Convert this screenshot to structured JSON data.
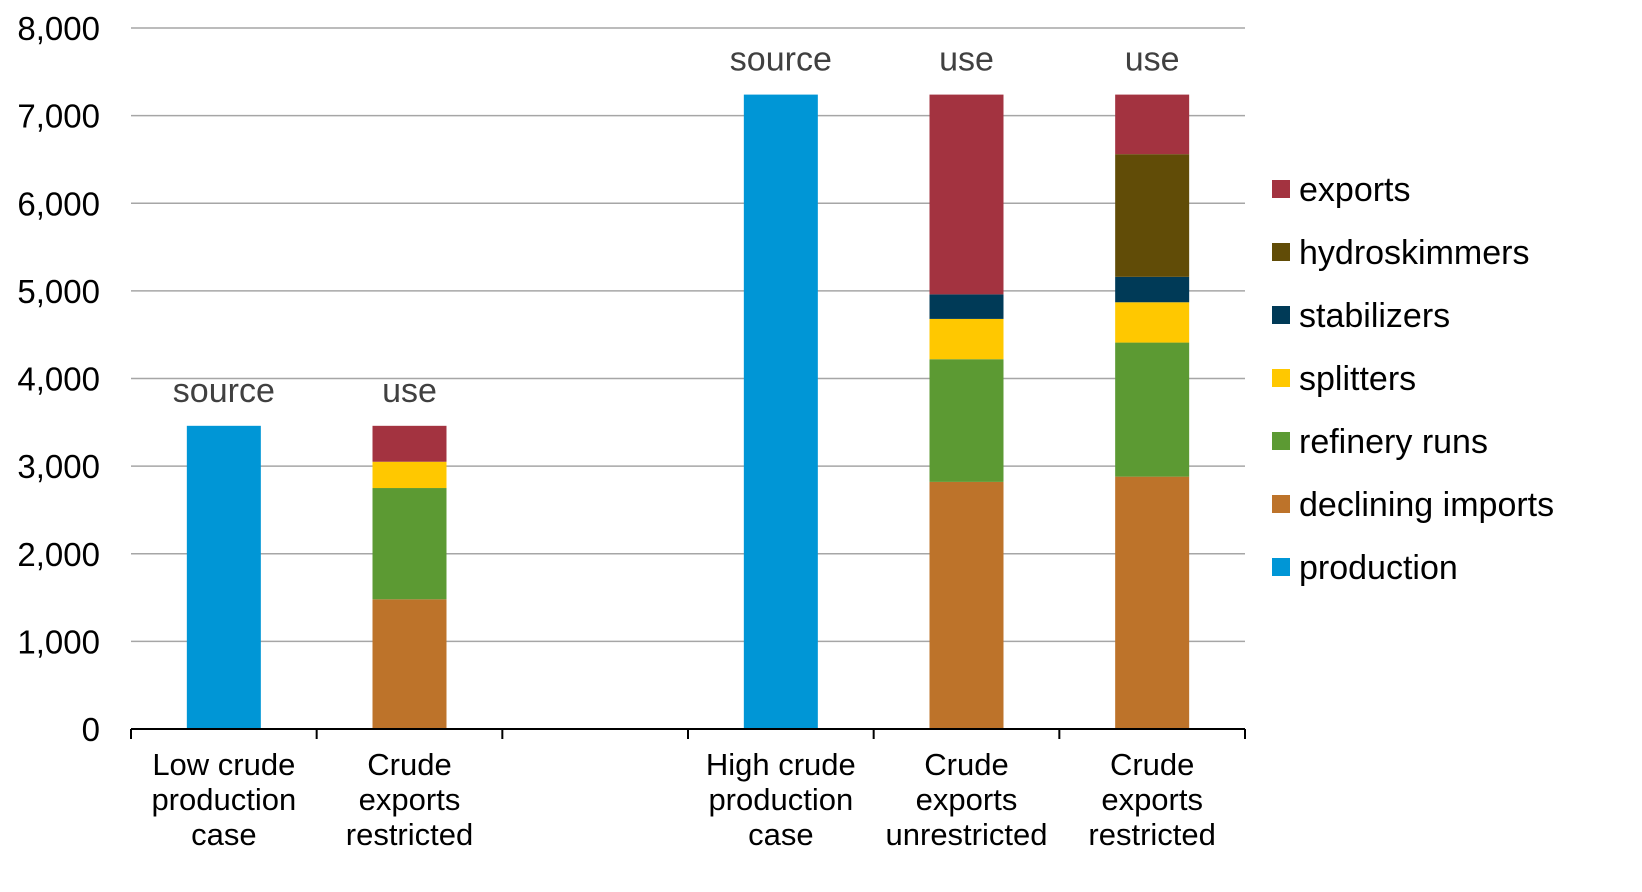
{
  "chart_data": {
    "type": "bar",
    "stacked": true,
    "title": "",
    "xlabel": "",
    "ylabel": "",
    "ylim": [
      0,
      8000
    ],
    "yticks": [
      0,
      1000,
      2000,
      3000,
      4000,
      5000,
      6000,
      7000,
      8000
    ],
    "ytick_labels": [
      "0",
      "1,000",
      "2,000",
      "3,000",
      "4,000",
      "5,000",
      "6,000",
      "7,000",
      "8,000"
    ],
    "grid": true,
    "legend_position": "right",
    "categories": [
      [
        "Low crude",
        "production",
        "case"
      ],
      [
        "Crude",
        "exports",
        "restricted"
      ],
      [],
      [
        "High crude",
        "production",
        "case"
      ],
      [
        "Crude",
        "exports",
        "unrestricted"
      ],
      [
        "Crude",
        "exports",
        "restricted"
      ]
    ],
    "annotations": [
      "source",
      "use",
      "",
      "source",
      "use",
      "use"
    ],
    "series": [
      {
        "name": "production",
        "color": "#0096D6",
        "values": [
          3460,
          0,
          0,
          7240,
          0,
          0
        ]
      },
      {
        "name": "declining imports",
        "color": "#BD732A",
        "values": [
          0,
          1480,
          0,
          0,
          2820,
          2880
        ]
      },
      {
        "name": "refinery runs",
        "color": "#5C9A33",
        "values": [
          0,
          1270,
          0,
          0,
          1400,
          1530
        ]
      },
      {
        "name": "splitters",
        "color": "#FFC800",
        "values": [
          0,
          300,
          0,
          0,
          460,
          460
        ]
      },
      {
        "name": "stabilizers",
        "color": "#003A57",
        "values": [
          0,
          0,
          0,
          0,
          280,
          290
        ]
      },
      {
        "name": "hydroskimmers",
        "color": "#614C07",
        "values": [
          0,
          0,
          0,
          0,
          0,
          1400
        ]
      },
      {
        "name": "exports",
        "color": "#A33340",
        "values": [
          0,
          410,
          0,
          0,
          2280,
          680
        ]
      }
    ],
    "legend_order": [
      "exports",
      "hydroskimmers",
      "stabilizers",
      "splitters",
      "refinery runs",
      "declining imports",
      "production"
    ]
  }
}
